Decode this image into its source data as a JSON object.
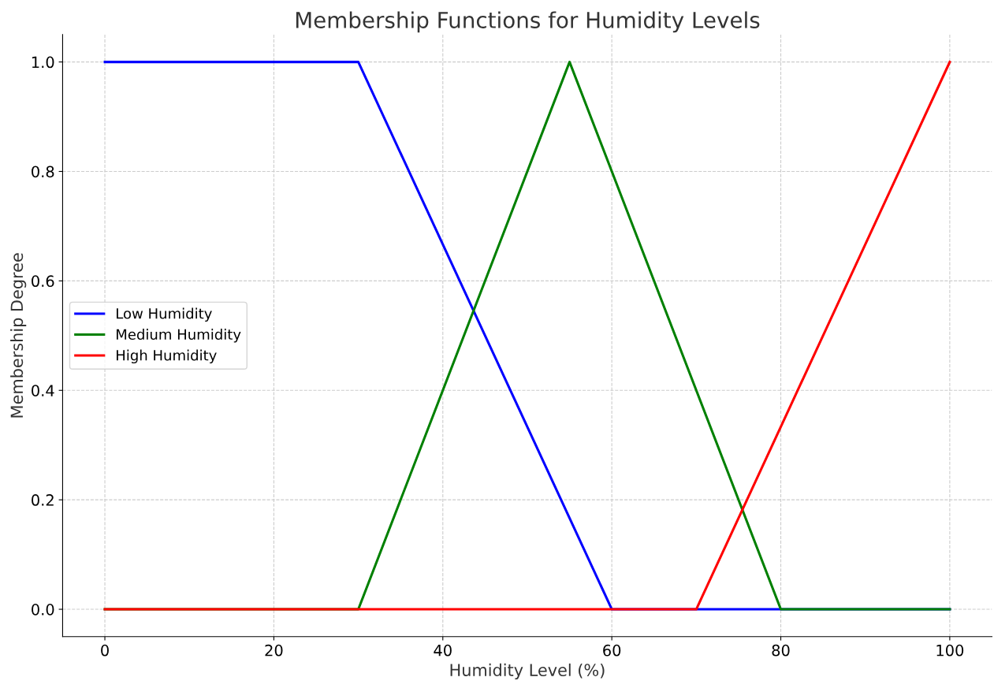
{
  "chart_data": {
    "type": "line",
    "title": "Membership Functions for Humidity Levels",
    "xlabel": "Humidity Level (%)",
    "ylabel": "Membership Degree",
    "series": [
      {
        "name": "Low Humidity",
        "color": "#0000ff",
        "x": [
          0,
          30,
          60,
          100
        ],
        "values": [
          1.0,
          1.0,
          0.0,
          0.0
        ]
      },
      {
        "name": "Medium Humidity",
        "color": "#008000",
        "x": [
          0,
          30,
          55,
          80,
          100
        ],
        "values": [
          0.0,
          0.0,
          1.0,
          0.0,
          0.0
        ]
      },
      {
        "name": "High Humidity",
        "color": "#ff0000",
        "x": [
          0,
          70,
          100
        ],
        "values": [
          0.0,
          0.0,
          1.0
        ]
      }
    ],
    "xlim": [
      -5,
      105
    ],
    "ylim": [
      -0.05,
      1.05
    ],
    "xticks": [
      0,
      20,
      40,
      60,
      80,
      100
    ],
    "yticks": [
      {
        "value": 0,
        "label": "0.0"
      },
      {
        "value": 0.2,
        "label": "0.2"
      },
      {
        "value": 0.4,
        "label": "0.4"
      },
      {
        "value": 0.6,
        "label": "0.6"
      },
      {
        "value": 0.8,
        "label": "0.8"
      },
      {
        "value": 1.0,
        "label": "1.0"
      }
    ],
    "grid": true,
    "legend": "left"
  }
}
